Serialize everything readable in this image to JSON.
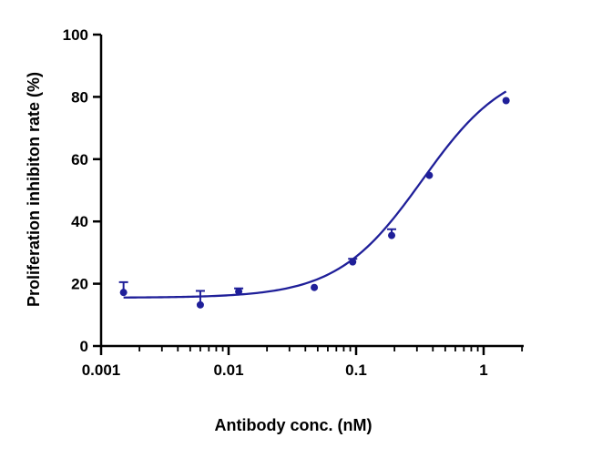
{
  "chart_data": {
    "type": "scatter",
    "title": "",
    "xlabel": "Antibody conc. (nM)",
    "ylabel": "Proliferation inhibiton rate (%)",
    "x_scale": "log",
    "xlim": [
      0.001,
      2
    ],
    "ylim": [
      0,
      100
    ],
    "x_ticks": [
      0.001,
      0.01,
      0.1,
      1
    ],
    "x_tick_labels": [
      "0.001",
      "0.01",
      "0.1",
      "1"
    ],
    "y_ticks": [
      0,
      20,
      40,
      60,
      80,
      100
    ],
    "y_tick_labels": [
      "0",
      "20",
      "40",
      "60",
      "80",
      "100"
    ],
    "grid": false,
    "color": "#1f1f99",
    "series": [
      {
        "x": [
          0.0015,
          0.006,
          0.012,
          0.047,
          0.094,
          0.19,
          0.375,
          1.5
        ],
        "y": [
          17.2,
          13.2,
          17.5,
          18.8,
          27.0,
          35.5,
          54.8,
          78.8
        ],
        "error": [
          3.3,
          4.5,
          1.0,
          0.4,
          1.0,
          2.0,
          0.3,
          0.2
        ]
      }
    ],
    "fit": {
      "model": "4PL",
      "bottom": 15.5,
      "top": 91,
      "ec50": 0.33,
      "hill": 1.3
    }
  }
}
